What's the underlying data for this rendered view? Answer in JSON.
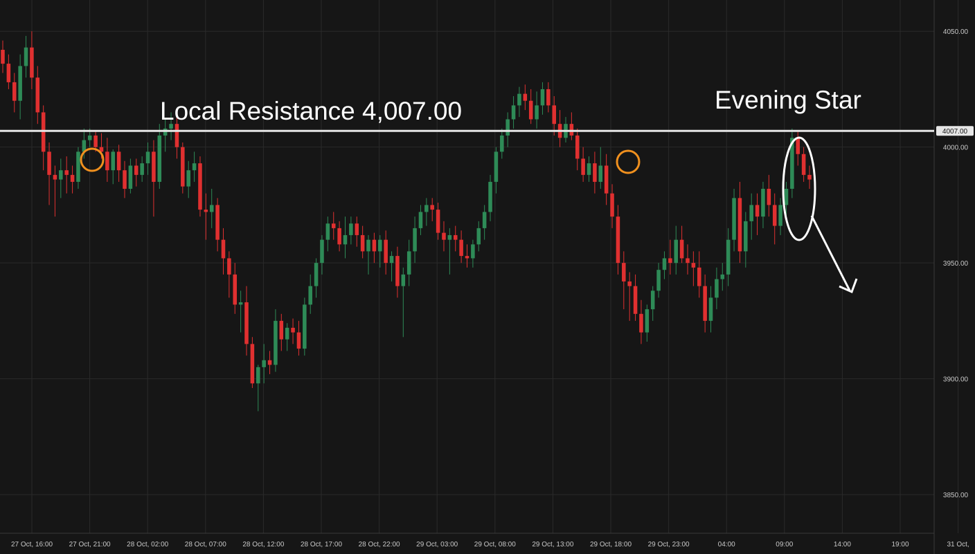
{
  "chart_data": {
    "type": "candlestick",
    "colors": {
      "up": "#2e8b57",
      "down": "#e03030",
      "background": "#161616",
      "grid": "#2a2a2a",
      "level": "#e6e6e6",
      "marker": "#f0901e"
    },
    "y_ticks": [
      3850,
      3900,
      3950,
      4000,
      4050
    ],
    "y_tick_labels": [
      "3850.00",
      "3900.00",
      "3950.00",
      "4000.00",
      "4050.00"
    ],
    "ylim": [
      3833.3,
      4063.5
    ],
    "x_tick_labels": [
      "27 Oct, 16:00",
      "27 Oct, 21:00",
      "28 Oct, 02:00",
      "28 Oct, 07:00",
      "28 Oct, 12:00",
      "28 Oct, 17:00",
      "28 Oct, 22:00",
      "29 Oct, 03:00",
      "29 Oct, 08:00",
      "29 Oct, 13:00",
      "29 Oct, 18:00",
      "29 Oct, 23:00",
      "04:00",
      "09:00",
      "14:00",
      "19:00",
      "31 Oct,"
    ],
    "levels": [
      {
        "price": 4007,
        "label": "4007.00"
      }
    ],
    "annotations": {
      "resistance": "Local Resistance 4,007.00",
      "pattern": "Evening Star"
    },
    "candles": [
      [
        4042,
        4046,
        4032,
        4036
      ],
      [
        4036,
        4040,
        4025,
        4028
      ],
      [
        4028,
        4032,
        4015,
        4020
      ],
      [
        4020,
        4040,
        4012,
        4035
      ],
      [
        4035,
        4048,
        4030,
        4043
      ],
      [
        4043,
        4050,
        4025,
        4030
      ],
      [
        4030,
        4035,
        4010,
        4015
      ],
      [
        4015,
        4018,
        3990,
        3998
      ],
      [
        3998,
        4002,
        3975,
        3988
      ],
      [
        3988,
        3992,
        3970,
        3986
      ],
      [
        3986,
        3995,
        3978,
        3990
      ],
      [
        3990,
        3996,
        3980,
        3988
      ],
      [
        3988,
        3992,
        3980,
        3985
      ],
      [
        3985,
        4000,
        3982,
        3998
      ],
      [
        3998,
        4008,
        3995,
        4003
      ],
      [
        4003,
        4008,
        4000,
        4005
      ],
      [
        4005,
        4007,
        3998,
        4000
      ],
      [
        4000,
        4006,
        3995,
        3998
      ],
      [
        3998,
        4004,
        3985,
        3990
      ],
      [
        3990,
        3999,
        3984,
        3998
      ],
      [
        3998,
        4001,
        3985,
        3990
      ],
      [
        3990,
        3994,
        3978,
        3982
      ],
      [
        3982,
        3995,
        3980,
        3992
      ],
      [
        3992,
        3995,
        3983,
        3988
      ],
      [
        3988,
        3996,
        3985,
        3993
      ],
      [
        3993,
        4002,
        3988,
        3998
      ],
      [
        3998,
        4003,
        3970,
        3985
      ],
      [
        3985,
        4010,
        3982,
        4005
      ],
      [
        4005,
        4012,
        3998,
        4008
      ],
      [
        4008,
        4015,
        4003,
        4010
      ],
      [
        4010,
        4014,
        3995,
        4000
      ],
      [
        4000,
        4002,
        3980,
        3983
      ],
      [
        3983,
        3994,
        3978,
        3990
      ],
      [
        3990,
        3998,
        3985,
        3993
      ],
      [
        3993,
        3996,
        3970,
        3973
      ],
      [
        3973,
        3980,
        3960,
        3972
      ],
      [
        3972,
        3982,
        3965,
        3975
      ],
      [
        3975,
        3978,
        3955,
        3960
      ],
      [
        3960,
        3965,
        3945,
        3952
      ],
      [
        3952,
        3955,
        3935,
        3945
      ],
      [
        3945,
        3950,
        3928,
        3932
      ],
      [
        3932,
        3938,
        3920,
        3933
      ],
      [
        3933,
        3940,
        3910,
        3915
      ],
      [
        3915,
        3918,
        3896,
        3898
      ],
      [
        3898,
        3906,
        3886,
        3905
      ],
      [
        3905,
        3915,
        3898,
        3908
      ],
      [
        3908,
        3912,
        3902,
        3906
      ],
      [
        3906,
        3930,
        3903,
        3925
      ],
      [
        3925,
        3928,
        3912,
        3917
      ],
      [
        3917,
        3924,
        3912,
        3922
      ],
      [
        3922,
        3926,
        3915,
        3920
      ],
      [
        3920,
        3925,
        3910,
        3913
      ],
      [
        3913,
        3935,
        3910,
        3932
      ],
      [
        3932,
        3945,
        3928,
        3940
      ],
      [
        3940,
        3952,
        3935,
        3950
      ],
      [
        3950,
        3962,
        3945,
        3960
      ],
      [
        3960,
        3970,
        3955,
        3967
      ],
      [
        3967,
        3972,
        3960,
        3965
      ],
      [
        3965,
        3968,
        3955,
        3958
      ],
      [
        3958,
        3970,
        3952,
        3962
      ],
      [
        3962,
        3970,
        3958,
        3967
      ],
      [
        3967,
        3970,
        3957,
        3962
      ],
      [
        3962,
        3966,
        3952,
        3955
      ],
      [
        3955,
        3962,
        3945,
        3960
      ],
      [
        3960,
        3963,
        3950,
        3955
      ],
      [
        3955,
        3962,
        3948,
        3960
      ],
      [
        3960,
        3964,
        3945,
        3950
      ],
      [
        3950,
        3955,
        3942,
        3953
      ],
      [
        3953,
        3957,
        3935,
        3940
      ],
      [
        3940,
        3948,
        3918,
        3945
      ],
      [
        3945,
        3960,
        3940,
        3955
      ],
      [
        3955,
        3970,
        3950,
        3965
      ],
      [
        3965,
        3975,
        3962,
        3972
      ],
      [
        3972,
        3978,
        3966,
        3975
      ],
      [
        3975,
        3978,
        3968,
        3973
      ],
      [
        3973,
        3976,
        3960,
        3963
      ],
      [
        3963,
        3968,
        3955,
        3960
      ],
      [
        3960,
        3965,
        3945,
        3962
      ],
      [
        3962,
        3966,
        3955,
        3960
      ],
      [
        3960,
        3964,
        3950,
        3953
      ],
      [
        3953,
        3958,
        3948,
        3952
      ],
      [
        3952,
        3960,
        3948,
        3958
      ],
      [
        3958,
        3968,
        3955,
        3965
      ],
      [
        3965,
        3975,
        3960,
        3972
      ],
      [
        3972,
        3988,
        3968,
        3985
      ],
      [
        3985,
        4000,
        3980,
        3998
      ],
      [
        3998,
        4008,
        3995,
        4005
      ],
      [
        4005,
        4015,
        4000,
        4012
      ],
      [
        4012,
        4022,
        4008,
        4018
      ],
      [
        4018,
        4026,
        4013,
        4023
      ],
      [
        4023,
        4027,
        4016,
        4020
      ],
      [
        4020,
        4025,
        4010,
        4012
      ],
      [
        4012,
        4024,
        4008,
        4018
      ],
      [
        4018,
        4028,
        4014,
        4025
      ],
      [
        4025,
        4028,
        4015,
        4018
      ],
      [
        4018,
        4022,
        4005,
        4010
      ],
      [
        4010,
        4016,
        4000,
        4004
      ],
      [
        4004,
        4013,
        4002,
        4010
      ],
      [
        4010,
        4015,
        4003,
        4005
      ],
      [
        4005,
        4008,
        3990,
        3995
      ],
      [
        3995,
        4000,
        3985,
        3988
      ],
      [
        3988,
        3996,
        3985,
        3993
      ],
      [
        3993,
        3998,
        3980,
        3985
      ],
      [
        3985,
        4000,
        3982,
        3992
      ],
      [
        3992,
        3997,
        3975,
        3980
      ],
      [
        3980,
        3984,
        3965,
        3970
      ],
      [
        3970,
        3975,
        3945,
        3950
      ],
      [
        3950,
        3955,
        3930,
        3942
      ],
      [
        3942,
        3946,
        3925,
        3940
      ],
      [
        3940,
        3945,
        3925,
        3928
      ],
      [
        3928,
        3934,
        3915,
        3920
      ],
      [
        3920,
        3932,
        3916,
        3930
      ],
      [
        3930,
        3940,
        3925,
        3938
      ],
      [
        3938,
        3950,
        3935,
        3947
      ],
      [
        3947,
        3955,
        3943,
        3952
      ],
      [
        3952,
        3960,
        3945,
        3950
      ],
      [
        3950,
        3966,
        3945,
        3960
      ],
      [
        3960,
        3966,
        3950,
        3952
      ],
      [
        3952,
        3958,
        3945,
        3950
      ],
      [
        3950,
        3955,
        3940,
        3948
      ],
      [
        3948,
        3955,
        3935,
        3940
      ],
      [
        3940,
        3945,
        3920,
        3925
      ],
      [
        3925,
        3940,
        3920,
        3935
      ],
      [
        3935,
        3948,
        3930,
        3943
      ],
      [
        3943,
        3950,
        3938,
        3945
      ],
      [
        3945,
        3965,
        3940,
        3960
      ],
      [
        3960,
        3982,
        3955,
        3978
      ],
      [
        3978,
        3985,
        3950,
        3955
      ],
      [
        3955,
        3972,
        3948,
        3968
      ],
      [
        3968,
        3980,
        3960,
        3975
      ],
      [
        3975,
        3980,
        3962,
        3970
      ],
      [
        3970,
        3985,
        3965,
        3982
      ],
      [
        3982,
        3988,
        3970,
        3975
      ],
      [
        3975,
        3980,
        3958,
        3966
      ],
      [
        3966,
        3978,
        3962,
        3975
      ],
      [
        3975,
        3985,
        3970,
        3982
      ],
      [
        3982,
        4008,
        3978,
        4004
      ],
      [
        4004,
        4007,
        3992,
        3997
      ],
      [
        3997,
        4000,
        3985,
        3988
      ],
      [
        3988,
        3992,
        3982,
        3986
      ]
    ]
  }
}
